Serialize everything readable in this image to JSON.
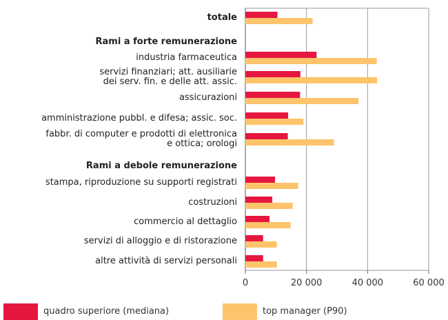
{
  "chart_data": {
    "type": "bar",
    "orientation": "horizontal",
    "categories": [
      "totale",
      "Rami a forte remunerazione",
      "industria farmaceutica",
      "servizi finanziari; att. ausiliarie\ndei serv. fin. e delle att. assic.",
      "assicurazioni",
      "amministrazione pubbl. e difesa; assic. soc.",
      "fabbr. di computer e prodotti di elettronica\ne ottica; orologi",
      "Rami a debole remunerazione",
      "stampa, riproduzione su supporti registrati",
      "costruzioni",
      "commercio al dettaglio",
      "servizi di alloggio e di ristorazione",
      "altre attività di servizi personali"
    ],
    "bold": [
      true,
      true,
      false,
      false,
      false,
      false,
      false,
      true,
      false,
      false,
      false,
      false,
      false
    ],
    "series": [
      {
        "name": "quadro superiore (mediana)",
        "color": "#e5173f",
        "values": [
          10500,
          null,
          23300,
          18000,
          17900,
          14000,
          13900,
          null,
          9700,
          8800,
          7900,
          5800,
          5800
        ]
      },
      {
        "name": "top manager (P90)",
        "color": "#fdc46b",
        "values": [
          22000,
          null,
          43000,
          43100,
          37000,
          19000,
          29000,
          null,
          17300,
          15500,
          14800,
          10300,
          10300
        ]
      }
    ],
    "xlim": [
      0,
      60000
    ],
    "xticks": [
      0,
      {
        "value": 20000,
        "label": "20 000"
      },
      {
        "value": 40000,
        "label": "40 000"
      },
      {
        "value": 60000,
        "label": "60 000"
      }
    ],
    "grid": true
  }
}
